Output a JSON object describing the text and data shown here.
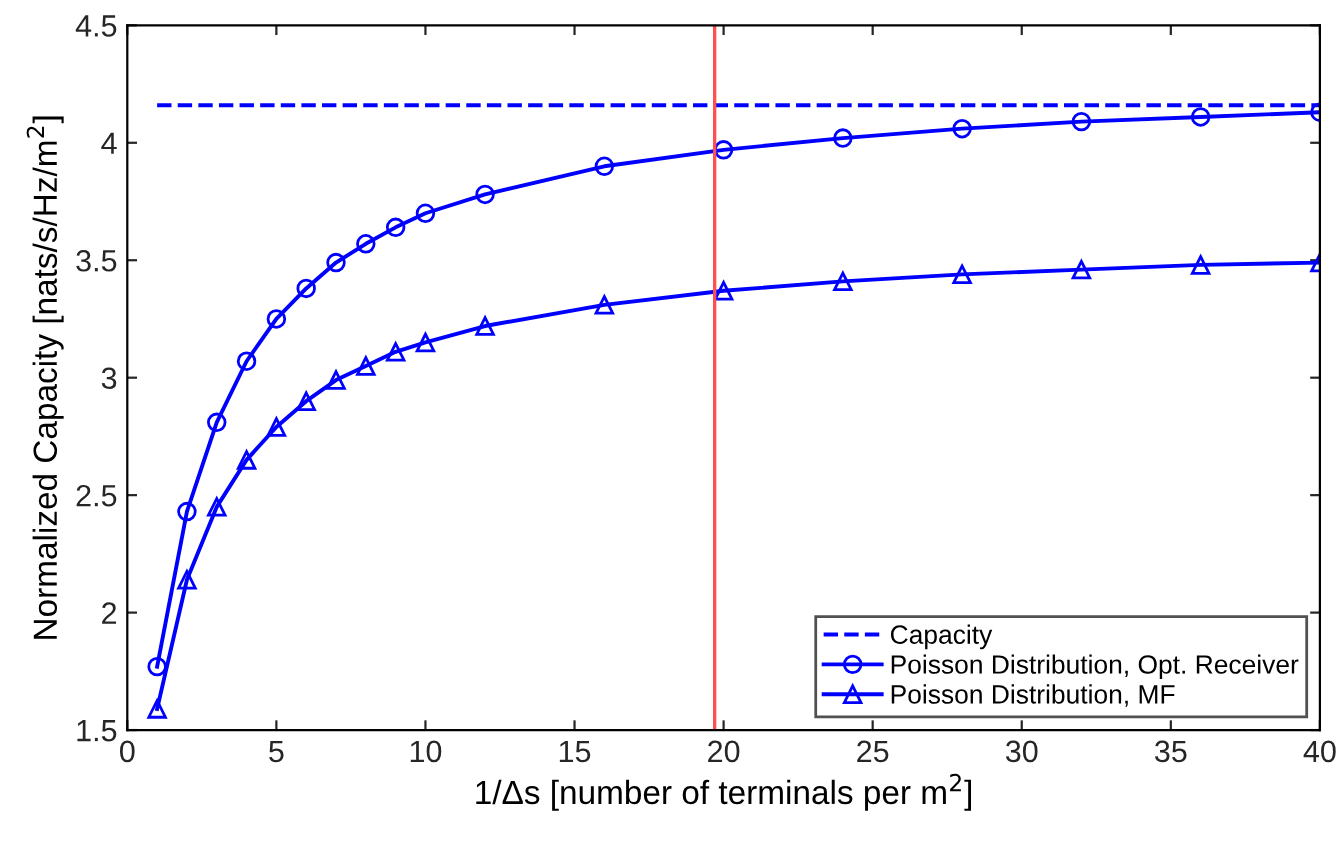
{
  "chart_data": {
    "type": "line",
    "xlabel": "1/Δs [number of terminals per m$^{2}$]",
    "ylabel": "Normalized Capacity [nats/s/Hz/m$^{2}$]",
    "xlim": [
      0,
      40
    ],
    "ylim": [
      1.5,
      4.5
    ],
    "xticks": [
      0,
      5,
      10,
      15,
      20,
      25,
      30,
      35,
      40
    ],
    "yticks": [
      1.5,
      2,
      2.5,
      3,
      3.5,
      4,
      4.5
    ],
    "grid": false,
    "legend": "bottom right",
    "series": [
      {
        "name": "Capacity",
        "color": "#0000ff",
        "line_style": "dashed",
        "marker": "none",
        "x": [
          1,
          40
        ],
        "values": [
          4.16,
          4.16
        ]
      },
      {
        "name": "Poisson Distribution, Opt. Receiver",
        "color": "#0000ff",
        "line_style": "solid",
        "marker": "circle",
        "x": [
          1,
          2,
          3,
          4,
          5,
          6,
          7,
          8,
          9,
          10,
          12,
          16,
          20,
          24,
          28,
          32,
          36,
          40
        ],
        "values": [
          1.77,
          2.43,
          2.81,
          3.07,
          3.25,
          3.38,
          3.49,
          3.57,
          3.64,
          3.7,
          3.78,
          3.9,
          3.97,
          4.02,
          4.06,
          4.09,
          4.11,
          4.13
        ]
      },
      {
        "name": "Poisson Distribution, MF",
        "color": "#0000ff",
        "line_style": "solid",
        "marker": "triangle",
        "x": [
          1,
          2,
          3,
          4,
          5,
          6,
          7,
          8,
          9,
          10,
          12,
          16,
          20,
          24,
          28,
          32,
          36,
          40
        ],
        "values": [
          1.59,
          2.14,
          2.45,
          2.65,
          2.79,
          2.9,
          2.99,
          3.05,
          3.11,
          3.15,
          3.22,
          3.31,
          3.37,
          3.41,
          3.44,
          3.46,
          3.48,
          3.49
        ]
      }
    ],
    "ref_lines": [
      {
        "axis": "x",
        "value": 19.7,
        "label": null,
        "color": "#ff5050"
      }
    ]
  }
}
